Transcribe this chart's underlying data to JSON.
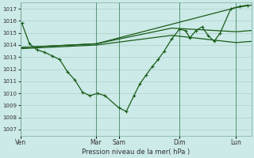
{
  "bg_color": "#cceae7",
  "grid_color": "#b0d0cc",
  "line_color": "#1a5c1a",
  "ylabel": "Pression niveau de la mer( hPa )",
  "ylim": [
    1006.5,
    1017.5
  ],
  "yticks": [
    1007,
    1008,
    1009,
    1010,
    1011,
    1012,
    1013,
    1014,
    1015,
    1016,
    1017
  ],
  "day_labels": [
    "Ven",
    "Mar",
    "Sam",
    "Dim",
    "Lun"
  ],
  "day_x": [
    0,
    100,
    130,
    210,
    285
  ],
  "xlim": [
    0,
    305
  ],
  "main_x": [
    2,
    12,
    22,
    32,
    42,
    52,
    62,
    72,
    82,
    92,
    102,
    112,
    130,
    140,
    150,
    158,
    166,
    174,
    182,
    190,
    200,
    210,
    218,
    224,
    232,
    240,
    248,
    256,
    264,
    278,
    290,
    300
  ],
  "main_y": [
    1015.8,
    1014.1,
    1013.6,
    1013.4,
    1013.1,
    1012.8,
    1011.8,
    1011.1,
    1010.1,
    1009.8,
    1010.0,
    1009.8,
    1008.8,
    1008.5,
    1009.8,
    1010.8,
    1011.5,
    1012.2,
    1012.8,
    1013.5,
    1014.5,
    1015.3,
    1015.2,
    1014.6,
    1015.2,
    1015.5,
    1014.8,
    1014.3,
    1015.0,
    1017.0,
    1017.2,
    1017.3
  ],
  "trend1_x": [
    2,
    100,
    285,
    305
  ],
  "trend1_y": [
    1013.8,
    1014.1,
    1017.1,
    1017.3
  ],
  "trend2_x": [
    2,
    100,
    200,
    285,
    305
  ],
  "trend2_y": [
    1013.8,
    1014.1,
    1015.4,
    1015.1,
    1015.2
  ],
  "trend3_x": [
    2,
    100,
    200,
    285,
    305
  ],
  "trend3_y": [
    1013.7,
    1014.0,
    1014.8,
    1014.2,
    1014.3
  ],
  "vlines_x": [
    0,
    100,
    130,
    210,
    285
  ]
}
